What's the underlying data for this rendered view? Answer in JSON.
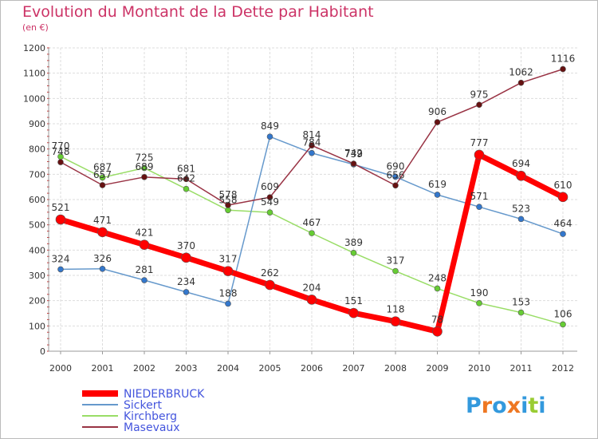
{
  "header": {
    "title": "Evolution du Montant de la Dette par Habitant",
    "subtitle": "(en €)"
  },
  "logo": {
    "text": "Proxiti"
  },
  "chart_data": {
    "type": "line",
    "categories": [
      "2000",
      "2001",
      "2002",
      "2003",
      "2004",
      "2005",
      "2006",
      "2007",
      "2008",
      "2009",
      "2010",
      "2011",
      "2012"
    ],
    "ylim": [
      0,
      1200
    ],
    "yticks": [
      0,
      100,
      200,
      300,
      400,
      500,
      600,
      700,
      800,
      900,
      1000,
      1100,
      1200
    ],
    "grid": true,
    "legend_position": "bottom-left",
    "series": [
      {
        "name": "NIEDERBRUCK",
        "color": "#ff0000",
        "marker": "#ff0000",
        "values": [
          521,
          471,
          421,
          370,
          317,
          262,
          204,
          151,
          118,
          78,
          777,
          694,
          610
        ]
      },
      {
        "name": "Sickert",
        "color": "#6699cc",
        "marker": "#3377cc",
        "values": [
          324,
          326,
          281,
          234,
          188,
          849,
          784,
          739,
          690,
          619,
          571,
          523,
          464
        ]
      },
      {
        "name": "Kirchberg",
        "color": "#99dd66",
        "marker": "#66cc33",
        "values": [
          770,
          687,
          725,
          642,
          558,
          549,
          467,
          389,
          317,
          248,
          190,
          153,
          106
        ]
      },
      {
        "name": "Masevaux",
        "color": "#993344",
        "marker": "#661111",
        "values": [
          748,
          657,
          689,
          681,
          578,
          609,
          814,
          742,
          656,
          906,
          975,
          1062,
          1116
        ]
      }
    ]
  }
}
